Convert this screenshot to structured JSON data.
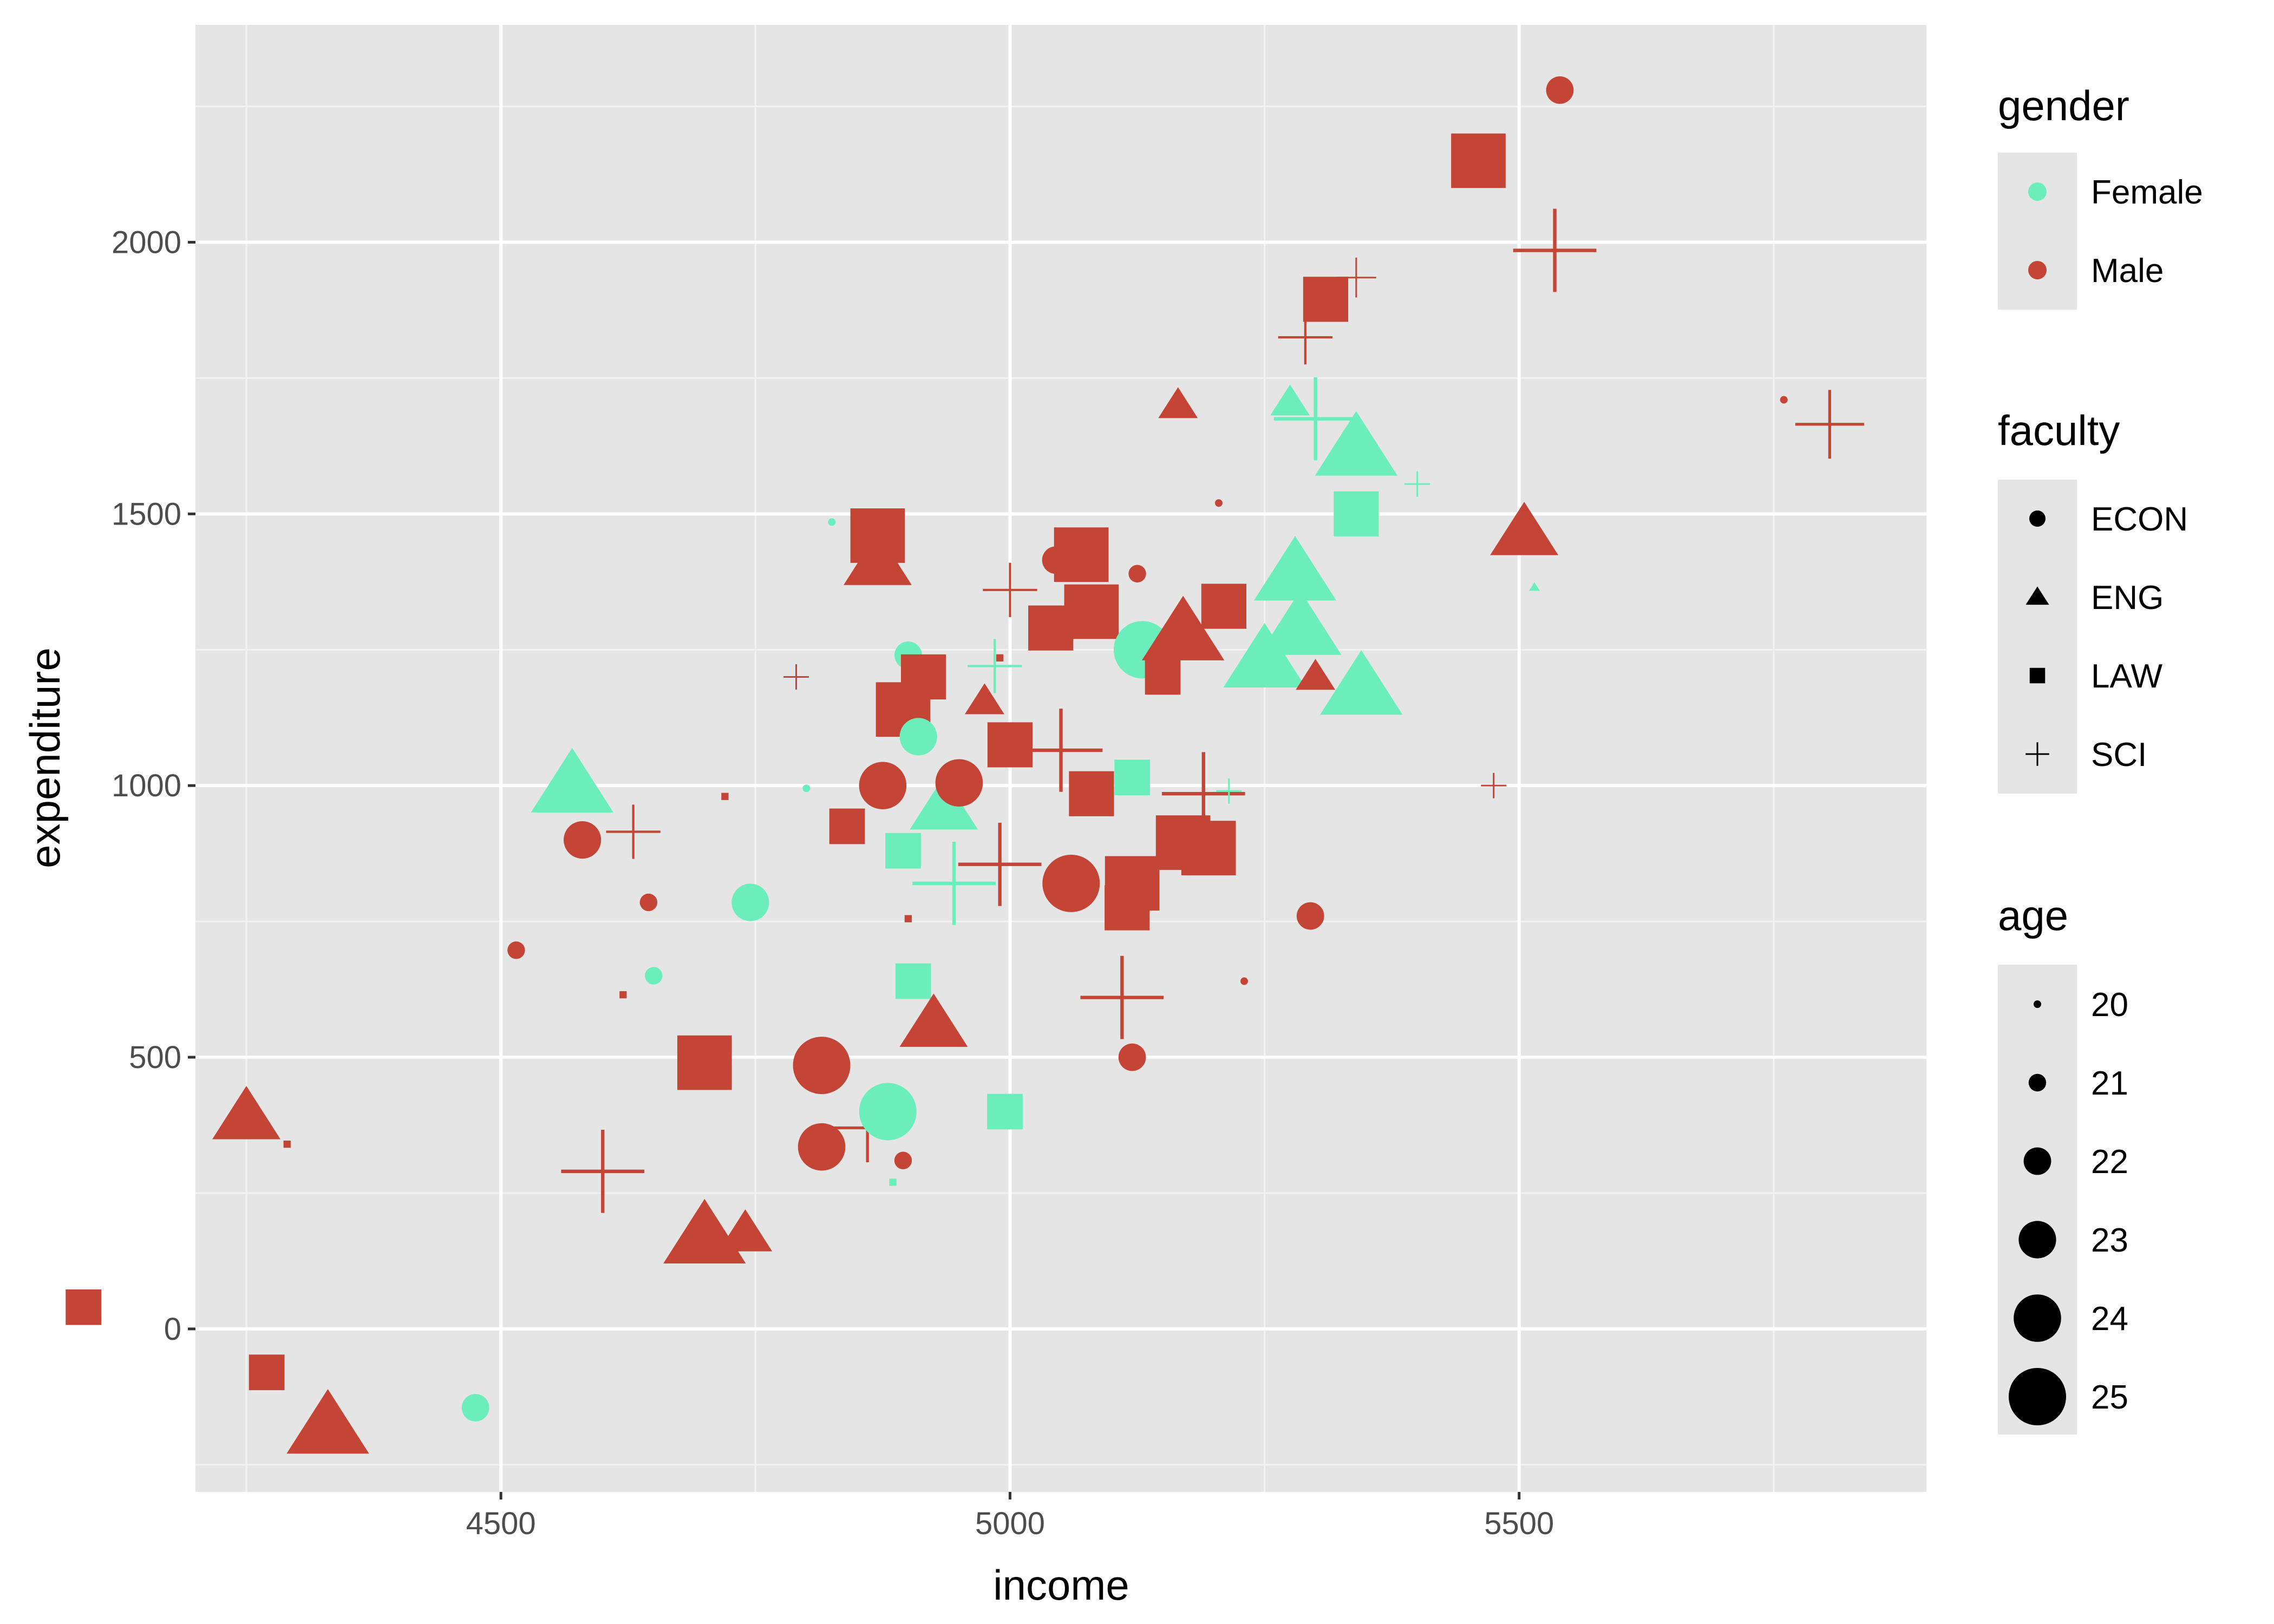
{
  "chart_data": {
    "type": "scatter",
    "title": "",
    "xlabel": "income",
    "ylabel": "expenditure",
    "xlim": [
      4200,
      5900
    ],
    "ylim": [
      -300,
      2400
    ],
    "x_ticks": [
      4500,
      5000,
      5500
    ],
    "y_ticks": [
      0,
      500,
      1000,
      1500,
      2000
    ],
    "x_tick_labels": [
      "4500",
      "5000",
      "5500"
    ],
    "y_tick_labels": [
      "0",
      "500",
      "1000",
      "1500",
      "2000"
    ],
    "grid": true,
    "legend_position": "right",
    "colors": {
      "Female": "#6beebb",
      "Male": "#c44536"
    },
    "legends": {
      "gender": {
        "title": "gender",
        "items": [
          "Female",
          "Male"
        ]
      },
      "faculty": {
        "title": "faculty",
        "items": [
          "ECON",
          "ENG",
          "LAW",
          "SCI"
        ]
      },
      "age": {
        "title": "age",
        "items": [
          "20",
          "21",
          "22",
          "23",
          "24",
          "25"
        ]
      }
    },
    "points": [
      {
        "x": 4090,
        "y": 40,
        "gender": "Male",
        "faculty": "LAW",
        "age": 23
      },
      {
        "x": 4270,
        "y": -80,
        "gender": "Male",
        "faculty": "LAW",
        "age": 23
      },
      {
        "x": 4290,
        "y": 340,
        "gender": "Male",
        "faculty": "LAW",
        "age": 20
      },
      {
        "x": 4250,
        "y": 390,
        "gender": "Male",
        "faculty": "ENG",
        "age": 24
      },
      {
        "x": 4330,
        "y": -180,
        "gender": "Male",
        "faculty": "ENG",
        "age": 25
      },
      {
        "x": 4475,
        "y": -145,
        "gender": "Female",
        "faculty": "ECON",
        "age": 22
      },
      {
        "x": 4515,
        "y": 697,
        "gender": "Male",
        "faculty": "ECON",
        "age": 21
      },
      {
        "x": 4570,
        "y": 1000,
        "gender": "Female",
        "faculty": "ENG",
        "age": 25
      },
      {
        "x": 4580,
        "y": 900,
        "gender": "Male",
        "faculty": "ECON",
        "age": 23
      },
      {
        "x": 4600,
        "y": 290,
        "gender": "Male",
        "faculty": "SCI",
        "age": 25
      },
      {
        "x": 4620,
        "y": 615,
        "gender": "Male",
        "faculty": "LAW",
        "age": 20
      },
      {
        "x": 4630,
        "y": 915,
        "gender": "Male",
        "faculty": "SCI",
        "age": 23
      },
      {
        "x": 4645,
        "y": 785,
        "gender": "Male",
        "faculty": "ECON",
        "age": 21
      },
      {
        "x": 4650,
        "y": 650,
        "gender": "Female",
        "faculty": "ECON",
        "age": 21
      },
      {
        "x": 4700,
        "y": 170,
        "gender": "Male",
        "faculty": "ENG",
        "age": 25
      },
      {
        "x": 4700,
        "y": 490,
        "gender": "Male",
        "faculty": "LAW",
        "age": 25
      },
      {
        "x": 4720,
        "y": 980,
        "gender": "Male",
        "faculty": "LAW",
        "age": 20
      },
      {
        "x": 4745,
        "y": 785,
        "gender": "Female",
        "faculty": "ECON",
        "age": 23
      },
      {
        "x": 4740,
        "y": 175,
        "gender": "Male",
        "faculty": "ENG",
        "age": 23
      },
      {
        "x": 4790,
        "y": 1200,
        "gender": "Male",
        "faculty": "SCI",
        "age": 21
      },
      {
        "x": 4800,
        "y": 995,
        "gender": "Female",
        "faculty": "ECON",
        "age": 20
      },
      {
        "x": 4815,
        "y": 485,
        "gender": "Male",
        "faculty": "ECON",
        "age": 25
      },
      {
        "x": 4815,
        "y": 335,
        "gender": "Male",
        "faculty": "ECON",
        "age": 24
      },
      {
        "x": 4825,
        "y": 1485,
        "gender": "Female",
        "faculty": "ECON",
        "age": 20
      },
      {
        "x": 4840,
        "y": 925,
        "gender": "Male",
        "faculty": "LAW",
        "age": 23
      },
      {
        "x": 4860,
        "y": 370,
        "gender": "Male",
        "faculty": "SCI",
        "age": 24
      },
      {
        "x": 4870,
        "y": 1460,
        "gender": "Male",
        "faculty": "LAW",
        "age": 25
      },
      {
        "x": 4870,
        "y": 1410,
        "gender": "Male",
        "faculty": "ENG",
        "age": 24
      },
      {
        "x": 4875,
        "y": 1000,
        "gender": "Male",
        "faculty": "ECON",
        "age": 24
      },
      {
        "x": 4880,
        "y": 400,
        "gender": "Female",
        "faculty": "ECON",
        "age": 25
      },
      {
        "x": 4885,
        "y": 270,
        "gender": "Female",
        "faculty": "LAW",
        "age": 20
      },
      {
        "x": 4895,
        "y": 310,
        "gender": "Male",
        "faculty": "ECON",
        "age": 21
      },
      {
        "x": 4900,
        "y": 1240,
        "gender": "Female",
        "faculty": "ECON",
        "age": 22
      },
      {
        "x": 4895,
        "y": 1140,
        "gender": "Male",
        "faculty": "LAW",
        "age": 25
      },
      {
        "x": 4895,
        "y": 880,
        "gender": "Female",
        "faculty": "LAW",
        "age": 23
      },
      {
        "x": 4900,
        "y": 755,
        "gender": "Male",
        "faculty": "LAW",
        "age": 20
      },
      {
        "x": 4905,
        "y": 640,
        "gender": "Female",
        "faculty": "LAW",
        "age": 23
      },
      {
        "x": 4910,
        "y": 1090,
        "gender": "Female",
        "faculty": "ECON",
        "age": 23
      },
      {
        "x": 4915,
        "y": 1200,
        "gender": "Male",
        "faculty": "LAW",
        "age": 24
      },
      {
        "x": 4925,
        "y": 560,
        "gender": "Male",
        "faculty": "ENG",
        "age": 24
      },
      {
        "x": 4935,
        "y": 960,
        "gender": "Female",
        "faculty": "ENG",
        "age": 24
      },
      {
        "x": 4945,
        "y": 820,
        "gender": "Female",
        "faculty": "SCI",
        "age": 25
      },
      {
        "x": 4950,
        "y": 1005,
        "gender": "Male",
        "faculty": "ECON",
        "age": 24
      },
      {
        "x": 4975,
        "y": 1155,
        "gender": "Male",
        "faculty": "ENG",
        "age": 22
      },
      {
        "x": 4985,
        "y": 1220,
        "gender": "Female",
        "faculty": "SCI",
        "age": 23
      },
      {
        "x": 4990,
        "y": 1235,
        "gender": "Male",
        "faculty": "LAW",
        "age": 20
      },
      {
        "x": 4990,
        "y": 855,
        "gender": "Male",
        "faculty": "SCI",
        "age": 25
      },
      {
        "x": 5000,
        "y": 1360,
        "gender": "Male",
        "faculty": "SCI",
        "age": 23
      },
      {
        "x": 5000,
        "y": 1075,
        "gender": "Male",
        "faculty": "LAW",
        "age": 24
      },
      {
        "x": 4995,
        "y": 400,
        "gender": "Female",
        "faculty": "LAW",
        "age": 23
      },
      {
        "x": 5040,
        "y": 1290,
        "gender": "Male",
        "faculty": "LAW",
        "age": 24
      },
      {
        "x": 5045,
        "y": 1415,
        "gender": "Male",
        "faculty": "ECON",
        "age": 22
      },
      {
        "x": 5050,
        "y": 1065,
        "gender": "Male",
        "faculty": "SCI",
        "age": 25
      },
      {
        "x": 5060,
        "y": 820,
        "gender": "Male",
        "faculty": "ECON",
        "age": 25
      },
      {
        "x": 5070,
        "y": 1425,
        "gender": "Male",
        "faculty": "LAW",
        "age": 25
      },
      {
        "x": 5080,
        "y": 1320,
        "gender": "Male",
        "faculty": "LAW",
        "age": 25
      },
      {
        "x": 5080,
        "y": 985,
        "gender": "Male",
        "faculty": "LAW",
        "age": 24
      },
      {
        "x": 5110,
        "y": 610,
        "gender": "Male",
        "faculty": "SCI",
        "age": 25
      },
      {
        "x": 5115,
        "y": 775,
        "gender": "Male",
        "faculty": "LAW",
        "age": 24
      },
      {
        "x": 5120,
        "y": 820,
        "gender": "Male",
        "faculty": "LAW",
        "age": 25
      },
      {
        "x": 5120,
        "y": 1015,
        "gender": "Female",
        "faculty": "LAW",
        "age": 23
      },
      {
        "x": 5120,
        "y": 500,
        "gender": "Male",
        "faculty": "ECON",
        "age": 22
      },
      {
        "x": 5125,
        "y": 1390,
        "gender": "Male",
        "faculty": "ECON",
        "age": 21
      },
      {
        "x": 5130,
        "y": 1250,
        "gender": "Female",
        "faculty": "ECON",
        "age": 25
      },
      {
        "x": 5150,
        "y": 1200,
        "gender": "Male",
        "faculty": "LAW",
        "age": 23
      },
      {
        "x": 5165,
        "y": 1700,
        "gender": "Male",
        "faculty": "ENG",
        "age": 22
      },
      {
        "x": 5170,
        "y": 1280,
        "gender": "Male",
        "faculty": "ENG",
        "age": 25
      },
      {
        "x": 5170,
        "y": 895,
        "gender": "Male",
        "faculty": "LAW",
        "age": 25
      },
      {
        "x": 5190,
        "y": 985,
        "gender": "Male",
        "faculty": "SCI",
        "age": 25
      },
      {
        "x": 5195,
        "y": 885,
        "gender": "Male",
        "faculty": "LAW",
        "age": 25
      },
      {
        "x": 5205,
        "y": 1520,
        "gender": "Male",
        "faculty": "ECON",
        "age": 20
      },
      {
        "x": 5210,
        "y": 1330,
        "gender": "Male",
        "faculty": "LAW",
        "age": 24
      },
      {
        "x": 5215,
        "y": 990,
        "gender": "Female",
        "faculty": "SCI",
        "age": 21
      },
      {
        "x": 5230,
        "y": 640,
        "gender": "Male",
        "faculty": "ECON",
        "age": 20
      },
      {
        "x": 5250,
        "y": 1230,
        "gender": "Female",
        "faculty": "ENG",
        "age": 25
      },
      {
        "x": 5275,
        "y": 1705,
        "gender": "Female",
        "faculty": "ENG",
        "age": 22
      },
      {
        "x": 5280,
        "y": 1390,
        "gender": "Female",
        "faculty": "ENG",
        "age": 25
      },
      {
        "x": 5285,
        "y": 1290,
        "gender": "Female",
        "faculty": "ENG",
        "age": 25
      },
      {
        "x": 5290,
        "y": 1825,
        "gender": "Male",
        "faculty": "SCI",
        "age": 23
      },
      {
        "x": 5295,
        "y": 760,
        "gender": "Male",
        "faculty": "ECON",
        "age": 22
      },
      {
        "x": 5300,
        "y": 1200,
        "gender": "Male",
        "faculty": "ENG",
        "age": 22
      },
      {
        "x": 5300,
        "y": 1675,
        "gender": "Female",
        "faculty": "SCI",
        "age": 25
      },
      {
        "x": 5310,
        "y": 1895,
        "gender": "Male",
        "faculty": "LAW",
        "age": 24
      },
      {
        "x": 5340,
        "y": 1935,
        "gender": "Male",
        "faculty": "SCI",
        "age": 22
      },
      {
        "x": 5340,
        "y": 1620,
        "gender": "Female",
        "faculty": "ENG",
        "age": 25
      },
      {
        "x": 5345,
        "y": 1180,
        "gender": "Female",
        "faculty": "ENG",
        "age": 25
      },
      {
        "x": 5340,
        "y": 1500,
        "gender": "Female",
        "faculty": "LAW",
        "age": 24
      },
      {
        "x": 5400,
        "y": 1555,
        "gender": "Female",
        "faculty": "SCI",
        "age": 21
      },
      {
        "x": 5460,
        "y": 2150,
        "gender": "Male",
        "faculty": "LAW",
        "age": 25
      },
      {
        "x": 5475,
        "y": 1000,
        "gender": "Male",
        "faculty": "SCI",
        "age": 21
      },
      {
        "x": 5505,
        "y": 1465,
        "gender": "Male",
        "faculty": "ENG",
        "age": 24
      },
      {
        "x": 5515,
        "y": 1365,
        "gender": "Female",
        "faculty": "ENG",
        "age": 20
      },
      {
        "x": 5535,
        "y": 1985,
        "gender": "Male",
        "faculty": "SCI",
        "age": 25
      },
      {
        "x": 5540,
        "y": 2280,
        "gender": "Male",
        "faculty": "ECON",
        "age": 22
      },
      {
        "x": 5760,
        "y": 1710,
        "gender": "Male",
        "faculty": "ECON",
        "age": 20
      },
      {
        "x": 5805,
        "y": 1665,
        "gender": "Male",
        "faculty": "SCI",
        "age": 24
      }
    ]
  }
}
